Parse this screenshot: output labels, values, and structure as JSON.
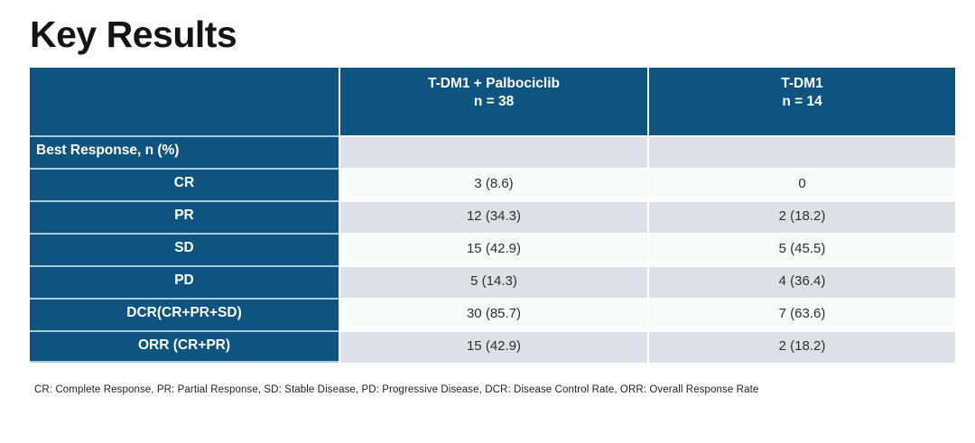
{
  "slide": {
    "title": "Key Results",
    "footnote": "CR: Complete Response, PR: Partial Response, SD: Stable Disease, PD: Progressive Disease, DCR: Disease Control Rate, ORR: Overall Response Rate"
  },
  "table": {
    "columns": [
      {
        "title": "T-DM1 + Palbociclib",
        "n": "n = 38"
      },
      {
        "title": "T-DM1",
        "n": "n = 14"
      }
    ],
    "rows": [
      {
        "label": "Best Response, n (%)",
        "values": [
          "",
          ""
        ]
      },
      {
        "label": "CR",
        "values": [
          "3 (8.6)",
          "0"
        ]
      },
      {
        "label": "PR",
        "values": [
          "12 (34.3)",
          "2 (18.2)"
        ]
      },
      {
        "label": "SD",
        "values": [
          "15 (42.9)",
          "5 (45.5)"
        ]
      },
      {
        "label": "PD",
        "values": [
          "5 (14.3)",
          "4 (36.4)"
        ]
      },
      {
        "label": "DCR(CR+PR+SD)",
        "values": [
          "30 (85.7)",
          "7 (63.6)"
        ]
      },
      {
        "label": "ORR (CR+PR)",
        "values": [
          "15 (42.9)",
          "2 (18.2)"
        ]
      }
    ]
  },
  "colors": {
    "header_blue": "#0E547F",
    "row_gray": "#DCE1E8",
    "row_white": "#F7FBFA",
    "label_divider_blue": "#A6CCDF",
    "header_text": "#FFFFFF",
    "data_text": "#2E2E2E"
  }
}
